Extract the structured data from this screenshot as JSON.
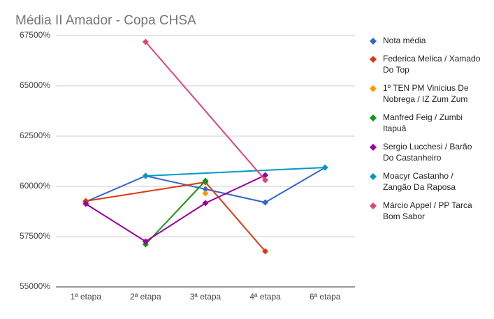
{
  "chart_data": {
    "type": "line",
    "title": "Média II Amador - Copa CHSA",
    "categories": [
      "1ª etapa",
      "2ª etapa",
      "3ª etapa",
      "4ª etapa",
      "6ª etapa"
    ],
    "series": [
      {
        "name": "Nota média",
        "color": "#3366cc",
        "values": [
          59236,
          60521,
          59861,
          59201,
          60938
        ]
      },
      {
        "name": "Federica Melica / Xamado Do Top",
        "color": "#dc3912",
        "values": [
          59271,
          null,
          60208,
          56771,
          null
        ]
      },
      {
        "name": "1º TEN PM Vinicius De Nobrega / IZ Zum Zum",
        "color": "#ff9900",
        "values": [
          null,
          null,
          59653,
          null,
          null
        ]
      },
      {
        "name": "Manfred Feig / Zumbi Itapuã",
        "color": "#109618",
        "values": [
          null,
          57118,
          60278,
          null,
          null
        ]
      },
      {
        "name": "Sergio Lucchesi / Barão Do Castanheiro",
        "color": "#990099",
        "values": [
          59132,
          57257,
          59167,
          60556,
          null
        ]
      },
      {
        "name": "Moacyr Castanho / Zangão Da Raposa",
        "color": "#0099c6",
        "values": [
          null,
          60521,
          null,
          null,
          60938
        ]
      },
      {
        "name": "Márcio Appel / PP Tarca Bom Sabor",
        "color": "#dd4477",
        "values": [
          null,
          67188,
          null,
          60313,
          null
        ]
      }
    ],
    "ylim": [
      55000,
      67500
    ],
    "yticks": [
      {
        "value": 55000,
        "label": "55000%"
      },
      {
        "value": 57500,
        "label": "57500%"
      },
      {
        "value": 60000,
        "label": "60000%"
      },
      {
        "value": 62500,
        "label": "62500%"
      },
      {
        "value": 65000,
        "label": "65000%"
      },
      {
        "value": 67500,
        "label": "67500%"
      }
    ],
    "grid": true,
    "connect_gaps": true,
    "legend": "right"
  }
}
